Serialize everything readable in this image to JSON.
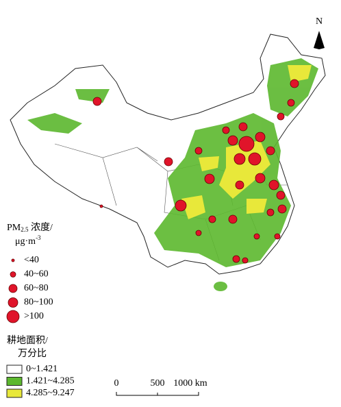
{
  "north_arrow": "N",
  "pm25_legend": {
    "title": {
      "main": "PM",
      "subscript": "2.5",
      "rest": " 浓度/"
    },
    "unit": {
      "base": "μg·m",
      "superscript": "-3"
    },
    "classes": [
      "<40",
      "40~60",
      "60~80",
      "80~100",
      ">100"
    ]
  },
  "cropland_legend": {
    "title": [
      "耕地面积/",
      "万分比"
    ],
    "classes": [
      {
        "label": "0~1.421",
        "color": "#ffffff"
      },
      {
        "label": "1.421~4.285",
        "color": "#5cb82e"
      },
      {
        "label": "4.285~9.247",
        "color": "#e8e83a"
      }
    ]
  },
  "scale_bar": {
    "labels": [
      "0",
      "500",
      "1000 km"
    ]
  }
}
